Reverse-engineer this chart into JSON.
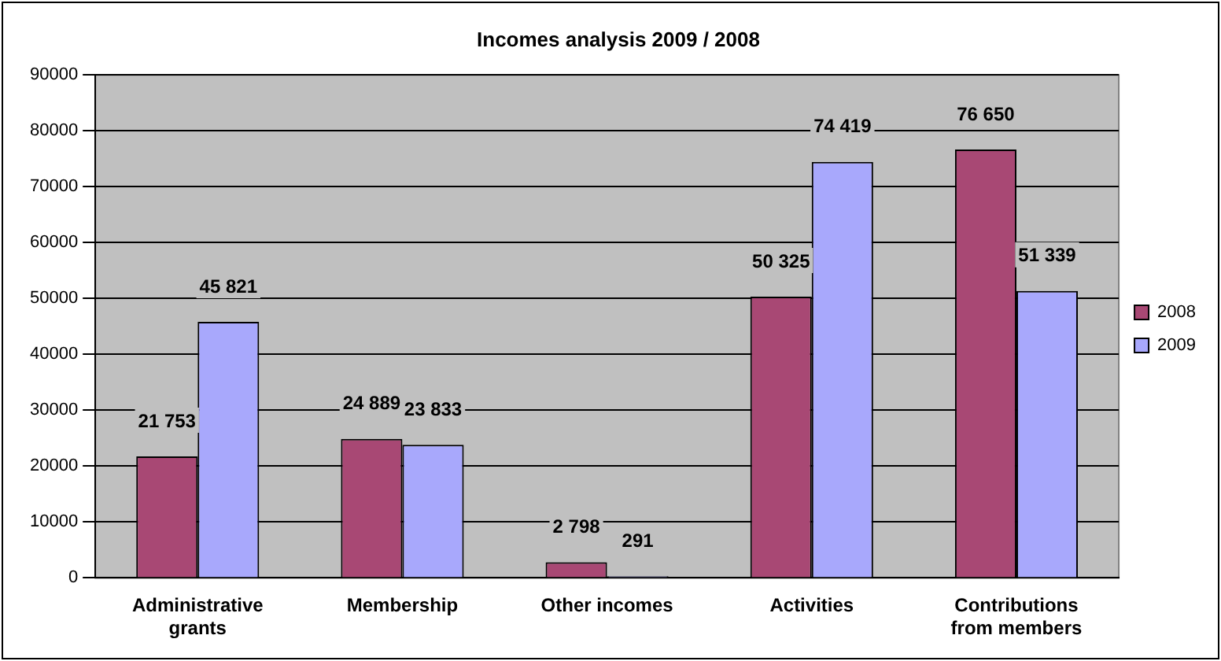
{
  "chart_data": {
    "type": "bar",
    "title": "Incomes analysis 2009 / 2008",
    "categories": [
      "Administrative grants",
      "Membership",
      "Other incomes",
      "Activities",
      "Contributions from members"
    ],
    "series": [
      {
        "name": "2008",
        "color": "#a84874",
        "values": [
          21753,
          24889,
          2798,
          50325,
          76650
        ],
        "value_labels": [
          "21 753",
          "24 889",
          "2 798",
          "50 325",
          "76 650"
        ]
      },
      {
        "name": "2009",
        "color": "#a8a8fc",
        "values": [
          45821,
          23833,
          291,
          74419,
          51339
        ],
        "value_labels": [
          "45 821",
          "23 833",
          "291",
          "74 419",
          "51 339"
        ]
      }
    ],
    "ylim": [
      0,
      90000
    ],
    "yticks": [
      0,
      10000,
      20000,
      30000,
      40000,
      50000,
      60000,
      70000,
      80000,
      90000
    ],
    "grid": "y",
    "legend": "right"
  }
}
